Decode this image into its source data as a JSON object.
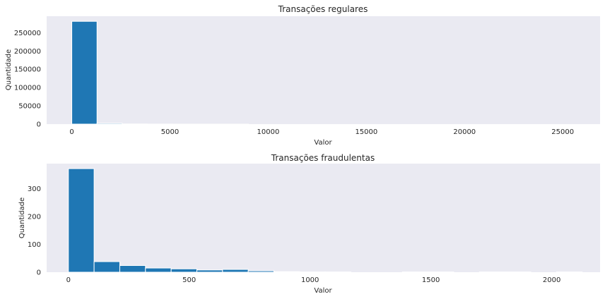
{
  "chart_data": [
    {
      "type": "bar",
      "title": "Transações regulares",
      "xlabel": "Valor",
      "ylabel": "Quantidade",
      "grid": false,
      "xlim": [
        -1280,
        26900
      ],
      "ylim": [
        0,
        295000
      ],
      "xticks": [
        0,
        5000,
        10000,
        15000,
        20000,
        25000
      ],
      "yticks": [
        0,
        50000,
        100000,
        150000,
        200000,
        250000
      ],
      "bins": {
        "start": 0,
        "width": 1284.5,
        "count": 20
      },
      "values": [
        281000,
        2300,
        400,
        120,
        50,
        25,
        12,
        8,
        5,
        3,
        2,
        1,
        1,
        0,
        0,
        0,
        0,
        0,
        0,
        1
      ]
    },
    {
      "type": "bar",
      "title": "Transações fraudulentas",
      "xlabel": "Valor",
      "ylabel": "Quantidade",
      "grid": false,
      "xlim": [
        -90,
        2200
      ],
      "ylim": [
        0,
        390
      ],
      "xticks": [
        0,
        500,
        1000,
        1500,
        2000
      ],
      "yticks": [
        0,
        100,
        200,
        300
      ],
      "bins": {
        "start": 0,
        "width": 106.3,
        "count": 20
      },
      "values": [
        372,
        38,
        24,
        15,
        12,
        8,
        10,
        5,
        2,
        1,
        1,
        0,
        0,
        1,
        1,
        0,
        1,
        1,
        0,
        1
      ]
    }
  ]
}
